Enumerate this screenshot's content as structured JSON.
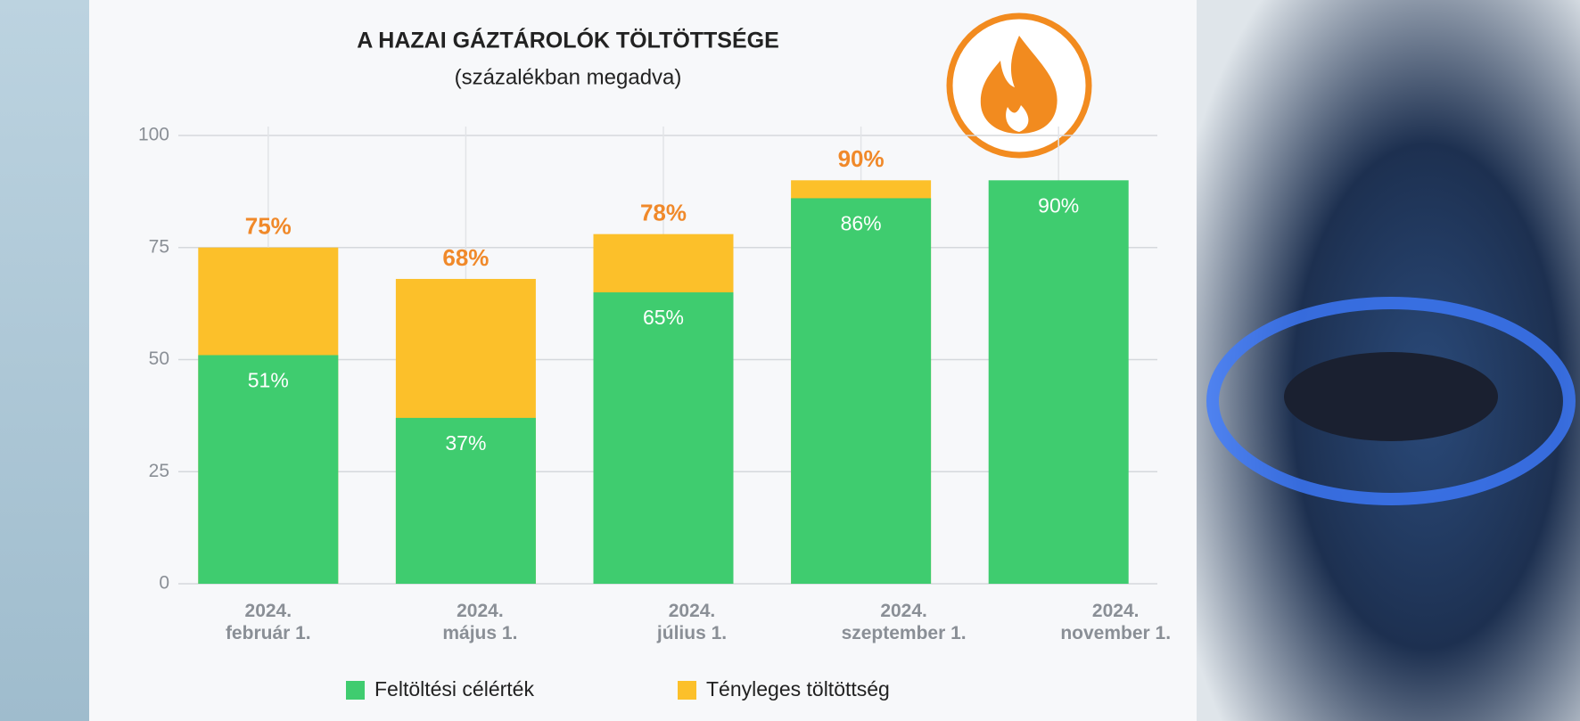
{
  "chart_data": {
    "type": "bar",
    "title": "A HAZAI GÁZTÁROLÓK TÖLTÖTTSÉGE",
    "subtitle": "(százalékban megadva)",
    "categories": [
      "2024.\nfebruár 1.",
      "2024.\nmájus 1.",
      "2024.\njúlius 1.",
      "2024.\nszeptember 1.",
      "2024.\nnovember 1."
    ],
    "series": [
      {
        "name": "Tényleges töltöttség",
        "color": "#fcc02a",
        "values": [
          75,
          68,
          78,
          90,
          null
        ],
        "value_labels": [
          "75%",
          "68%",
          "78%",
          "90%",
          null
        ]
      },
      {
        "name": "Feltöltési célérték",
        "color": "#3fcc6f",
        "values": [
          51,
          37,
          65,
          86,
          90
        ],
        "value_labels": [
          "51%",
          "37%",
          "65%",
          "86%",
          "90%"
        ]
      }
    ],
    "ylim": [
      0,
      100
    ],
    "yticks": [
      0,
      25,
      50,
      75,
      100
    ],
    "grid": true
  }
}
